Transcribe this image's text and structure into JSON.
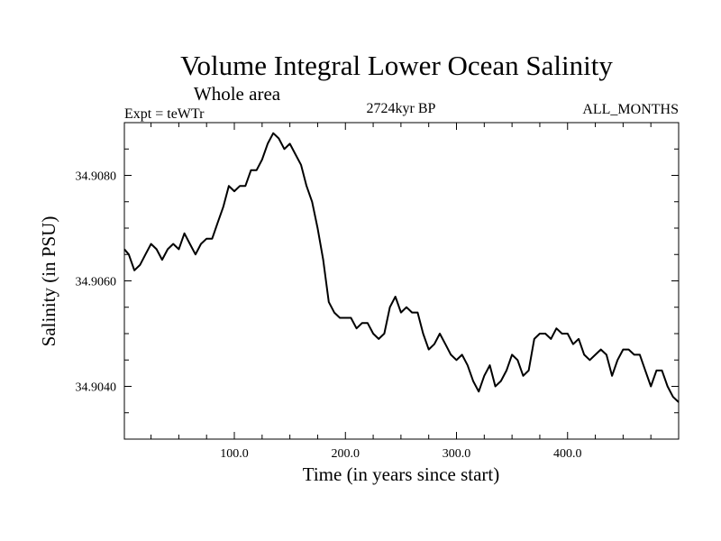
{
  "chart_data": {
    "type": "line",
    "title": "Volume Integral Lower Ocean Salinity",
    "subtitle": "Whole area",
    "annotations": {
      "experiment": "Expt = teWTr",
      "period": "2724kyr BP",
      "months": "ALL_MONTHS"
    },
    "xlabel": "Time (in years since start)",
    "ylabel": "Salinity (in PSU)",
    "xlim": [
      1,
      500
    ],
    "ylim": [
      34.903,
      34.909
    ],
    "x_ticks": [
      {
        "value": 100,
        "label": "100.0"
      },
      {
        "value": 200,
        "label": "200.0"
      },
      {
        "value": 300,
        "label": "300.0"
      },
      {
        "value": 400,
        "label": "400.0"
      }
    ],
    "y_ticks": [
      {
        "value": 34.904,
        "label": "34.9040"
      },
      {
        "value": 34.906,
        "label": "34.9060"
      },
      {
        "value": 34.908,
        "label": "34.9080"
      }
    ],
    "series": [
      {
        "name": "Lower ocean salinity",
        "color": "#000000",
        "x": [
          1,
          5,
          10,
          15,
          20,
          25,
          30,
          35,
          40,
          45,
          50,
          55,
          60,
          65,
          70,
          75,
          80,
          85,
          90,
          95,
          100,
          105,
          110,
          115,
          120,
          125,
          130,
          135,
          140,
          145,
          150,
          155,
          160,
          165,
          170,
          175,
          180,
          185,
          190,
          195,
          200,
          205,
          210,
          215,
          220,
          225,
          230,
          235,
          240,
          245,
          250,
          255,
          260,
          265,
          270,
          275,
          280,
          285,
          290,
          295,
          300,
          305,
          310,
          315,
          320,
          325,
          330,
          335,
          340,
          345,
          350,
          355,
          360,
          365,
          370,
          375,
          380,
          385,
          390,
          395,
          400,
          405,
          410,
          415,
          420,
          425,
          430,
          435,
          440,
          445,
          450,
          455,
          460,
          465,
          470,
          475,
          480,
          485,
          490,
          495,
          500
        ],
        "values": [
          34.9066,
          34.9065,
          34.9062,
          34.9063,
          34.9065,
          34.9067,
          34.9066,
          34.9064,
          34.9066,
          34.9067,
          34.9066,
          34.9069,
          34.9067,
          34.9065,
          34.9067,
          34.9068,
          34.9068,
          34.9071,
          34.9074,
          34.9078,
          34.9077,
          34.9078,
          34.9078,
          34.9081,
          34.9081,
          34.9083,
          34.9086,
          34.9088,
          34.9087,
          34.9085,
          34.9086,
          34.9084,
          34.9082,
          34.9078,
          34.9075,
          34.907,
          34.9064,
          34.9056,
          34.9054,
          34.9053,
          34.9053,
          34.9053,
          34.9051,
          34.9052,
          34.9052,
          34.905,
          34.9049,
          34.905,
          34.9055,
          34.9057,
          34.9054,
          34.9055,
          34.9054,
          34.9054,
          34.905,
          34.9047,
          34.9048,
          34.905,
          34.9048,
          34.9046,
          34.9045,
          34.9046,
          34.9044,
          34.9041,
          34.9039,
          34.9042,
          34.9044,
          34.904,
          34.9041,
          34.9043,
          34.9046,
          34.9045,
          34.9042,
          34.9043,
          34.9049,
          34.905,
          34.905,
          34.9049,
          34.9051,
          34.905,
          34.905,
          34.9048,
          34.9049,
          34.9046,
          34.9045,
          34.9046,
          34.9047,
          34.9046,
          34.9042,
          34.9045,
          34.9047,
          34.9047,
          34.9046,
          34.9046,
          34.9043,
          34.904,
          34.9043,
          34.9043,
          34.904,
          34.9038,
          34.9037
        ]
      }
    ],
    "grid": false
  }
}
